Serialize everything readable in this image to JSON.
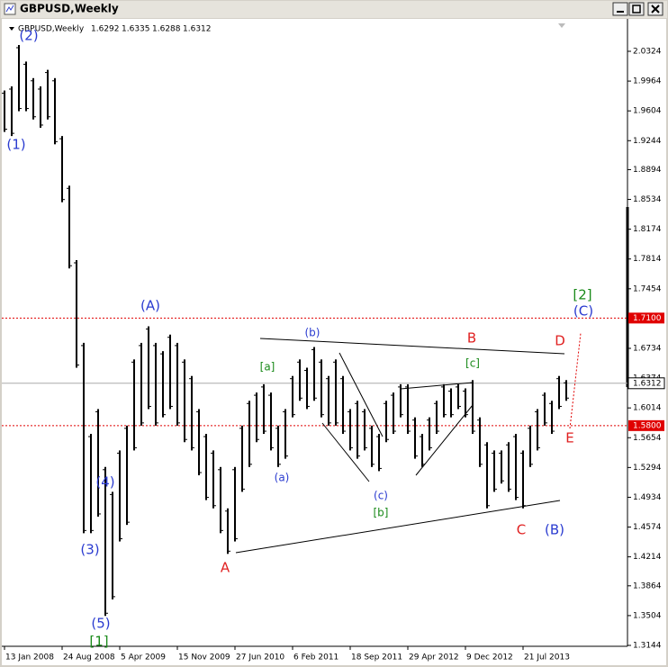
{
  "window_title": "GBPUSD,Weekly",
  "chart_data": {
    "type": "ohlc-bars",
    "info": {
      "symbol": "GBPUSD,Weekly",
      "open": 1.6292,
      "high": 1.6335,
      "low": 1.6288,
      "close": 1.6312
    },
    "categories": [
      "13 Jan 2008",
      null,
      null,
      null,
      null,
      null,
      null,
      null,
      "24 Aug 2008",
      null,
      null,
      null,
      null,
      null,
      null,
      null,
      "5 Apr 2009",
      null,
      null,
      null,
      null,
      null,
      null,
      null,
      "15 Nov 2009",
      null,
      null,
      null,
      null,
      null,
      null,
      null,
      "27 Jun 2010",
      null,
      null,
      null,
      null,
      null,
      null,
      null,
      "6 Feb 2011",
      null,
      null,
      null,
      null,
      null,
      null,
      null,
      "18 Sep 2011",
      null,
      null,
      null,
      null,
      null,
      null,
      null,
      "29 Apr 2012",
      null,
      null,
      null,
      null,
      null,
      null,
      null,
      "9 Dec 2012",
      null,
      null,
      null,
      null,
      null,
      null,
      null,
      "21 Jul 2013",
      null,
      null,
      null,
      null,
      null,
      null
    ],
    "highs": [
      1.985,
      1.99,
      2.04,
      2.02,
      2.0,
      1.99,
      2.01,
      2.0,
      1.93,
      1.87,
      1.78,
      1.68,
      1.57,
      1.6,
      1.53,
      1.5,
      1.55,
      1.58,
      1.66,
      1.68,
      1.7,
      1.68,
      1.67,
      1.69,
      1.68,
      1.66,
      1.64,
      1.6,
      1.57,
      1.55,
      1.53,
      1.48,
      1.53,
      1.58,
      1.61,
      1.62,
      1.63,
      1.62,
      1.58,
      1.6,
      1.64,
      1.66,
      1.65,
      1.675,
      1.66,
      1.64,
      1.66,
      1.64,
      1.6,
      1.61,
      1.6,
      1.58,
      1.57,
      1.61,
      1.62,
      1.63,
      1.63,
      1.59,
      1.57,
      1.59,
      1.61,
      1.63,
      1.625,
      1.63,
      1.625,
      1.635,
      1.59,
      1.56,
      1.55,
      1.55,
      1.56,
      1.57,
      1.55,
      1.58,
      1.6,
      1.62,
      1.61,
      1.64,
      1.635
    ],
    "lows": [
      1.935,
      1.93,
      1.96,
      1.96,
      1.95,
      1.94,
      1.95,
      1.92,
      1.85,
      1.77,
      1.65,
      1.45,
      1.45,
      1.47,
      1.35,
      1.37,
      1.44,
      1.46,
      1.55,
      1.58,
      1.6,
      1.58,
      1.59,
      1.6,
      1.58,
      1.56,
      1.55,
      1.52,
      1.49,
      1.48,
      1.45,
      1.425,
      1.44,
      1.5,
      1.53,
      1.56,
      1.57,
      1.55,
      1.53,
      1.54,
      1.59,
      1.61,
      1.6,
      1.61,
      1.59,
      1.58,
      1.58,
      1.57,
      1.55,
      1.54,
      1.55,
      1.53,
      1.525,
      1.56,
      1.57,
      1.59,
      1.57,
      1.54,
      1.53,
      1.55,
      1.57,
      1.59,
      1.59,
      1.6,
      1.59,
      1.57,
      1.53,
      1.48,
      1.5,
      1.51,
      1.5,
      1.49,
      1.48,
      1.53,
      1.55,
      1.58,
      1.57,
      1.6,
      1.61
    ],
    "color": "#000000",
    "ylim": [
      1.3133,
      2.0683
    ],
    "yticks": [
      2.0324,
      1.9964,
      1.9604,
      1.9244,
      1.8894,
      1.8534,
      1.8174,
      1.7814,
      1.7454,
      1.6734,
      1.6374,
      1.6014,
      1.5654,
      1.5294,
      1.4934,
      1.4574,
      1.4214,
      1.3864,
      1.3504,
      1.3144
    ],
    "levels": [
      {
        "value": 1.71,
        "label": "1.7100",
        "color": "#e00000"
      },
      {
        "value": 1.58,
        "label": "1.5800",
        "color": "#e00000"
      }
    ],
    "last_price": 1.6312,
    "annotations": [
      {
        "text": "(2)",
        "color": "#2a3bd0"
      },
      {
        "text": "(1)",
        "color": "#2a3bd0"
      },
      {
        "text": "(3)",
        "color": "#2a3bd0"
      },
      {
        "text": "(4)",
        "color": "#2a3bd0"
      },
      {
        "text": "(5)",
        "color": "#2a3bd0"
      },
      {
        "text": "[1]",
        "color": "#1a8a1a"
      },
      {
        "text": "(A)",
        "color": "#2a3bd0"
      },
      {
        "text": "A",
        "color": "#e02020"
      },
      {
        "text": "(a)",
        "color": "#2a3bd0"
      },
      {
        "text": "[a]",
        "color": "#1a8a1a"
      },
      {
        "text": "(b)",
        "color": "#2a3bd0"
      },
      {
        "text": "(c)",
        "color": "#2a3bd0"
      },
      {
        "text": "[b]",
        "color": "#1a8a1a"
      },
      {
        "text": "B",
        "color": "#e02020"
      },
      {
        "text": "[c]",
        "color": "#1a8a1a"
      },
      {
        "text": "C",
        "color": "#e02020"
      },
      {
        "text": "(B)",
        "color": "#2a3bd0"
      },
      {
        "text": "D",
        "color": "#e02020"
      },
      {
        "text": "E",
        "color": "#e02020"
      },
      {
        "text": "[2]",
        "color": "#1a8a1a"
      },
      {
        "text": "(C)",
        "color": "#2a3bd0"
      }
    ]
  }
}
